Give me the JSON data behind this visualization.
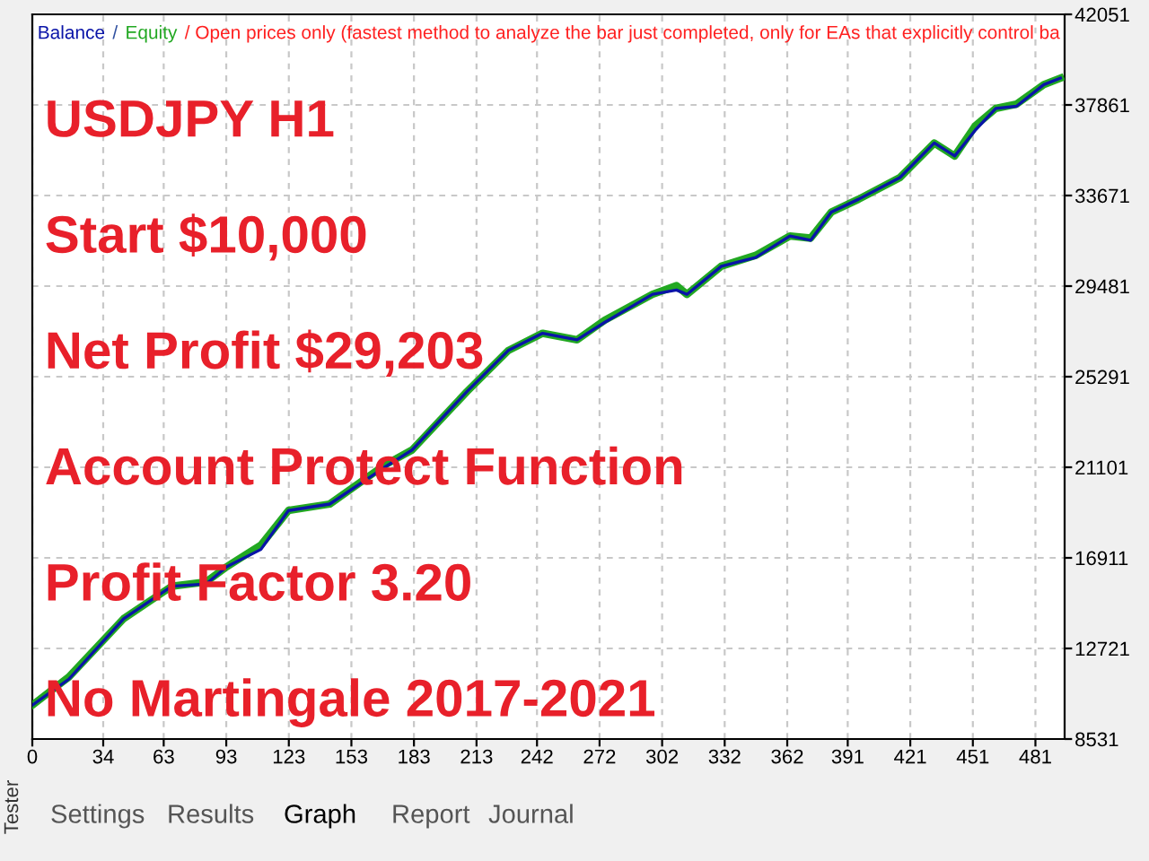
{
  "chart_data": {
    "type": "line",
    "subtitle": "/ Open prices only (fastest method to analyze the bar just completed, only for EAs that explicitly control ba",
    "x": [
      0,
      17.5,
      43.8,
      66.9,
      83.3,
      93.2,
      109.6,
      122.8,
      142.6,
      168.9,
      182.1,
      208.4,
      228.2,
      244.7,
      261.2,
      274.4,
      297.4,
      308.9,
      313.9,
      330.4,
      346.8,
      363.3,
      373.2,
      383.1,
      396.2,
      416,
      432.5,
      442.3,
      452.2,
      462,
      471.9,
      485,
      493
    ],
    "series": [
      {
        "name": "Balance",
        "color": "#0a14a8",
        "values": [
          10100,
          11300,
          14100,
          15600,
          15700,
          16500,
          17300,
          19100,
          19400,
          21100,
          21900,
          24600,
          26500,
          27300,
          27000,
          27800,
          29100,
          29300,
          29100,
          30400,
          30800,
          31800,
          31600,
          32900,
          33500,
          34500,
          36100,
          35500,
          36700,
          37700,
          37800,
          38800,
          39100
        ]
      },
      {
        "name": "Equity",
        "color": "#22a822",
        "values": [
          10100,
          11400,
          14100,
          15600,
          15800,
          16500,
          17500,
          19100,
          19400,
          21200,
          21900,
          24600,
          26500,
          27300,
          27000,
          27900,
          29100,
          29500,
          29100,
          30400,
          30900,
          31800,
          31700,
          32900,
          33500,
          34500,
          36100,
          35500,
          36900,
          37700,
          37900,
          38800,
          39100
        ]
      }
    ],
    "xlim": [
      0,
      495
    ],
    "ylim": [
      8531,
      42051
    ],
    "xticks": [
      0,
      34,
      63,
      93,
      123,
      153,
      183,
      213,
      242,
      272,
      302,
      332,
      362,
      391,
      421,
      451,
      481
    ],
    "yticks": [
      8531,
      12721,
      16911,
      21101,
      25291,
      29481,
      33671,
      37861,
      42051
    ],
    "grid": true,
    "legend": "top left",
    "annotations": [
      "/",
      "USDJPY H1",
      "Start $10,000",
      "Net Profit $29,203",
      "Account Protect Function",
      "Profit Factor 3.20",
      "No Martingale 2017-2021",
      "Tester",
      "Settings",
      "Results",
      "Graph",
      "Report",
      "Journal"
    ]
  }
}
